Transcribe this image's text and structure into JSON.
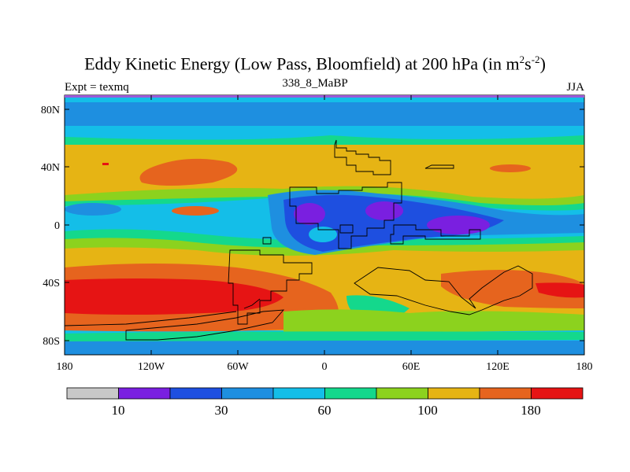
{
  "title": {
    "main": "Eddy Kinetic Energy (Low Pass, Bloomfield) at 200 hPa (in m",
    "sup1": "2",
    "mid": "s",
    "sup2": "-2",
    "end": ")"
  },
  "subtitle": {
    "left": "Expt = texmq",
    "center": "338_8_MaBP",
    "right": "JJA"
  },
  "axes": {
    "y_ticks": [
      "80N",
      "40N",
      "0",
      "40S",
      "80S"
    ],
    "x_ticks": [
      "180",
      "120W",
      "60W",
      "0",
      "60E",
      "120E",
      "180"
    ]
  },
  "colorbar": {
    "colors": [
      "#c8c8c8",
      "#7a1fe0",
      "#1e4fe0",
      "#1e8fe0",
      "#14bee8",
      "#14d88c",
      "#8cd21e",
      "#e6b414",
      "#e6641e",
      "#e61414"
    ],
    "labels": [
      "10",
      "30",
      "60",
      "100",
      "180"
    ]
  },
  "map_regions": [
    {
      "name": "blue",
      "color": "#1e8fe0"
    },
    {
      "name": "cyan",
      "color": "#14bee8"
    },
    {
      "name": "green",
      "color": "#14d88c"
    },
    {
      "name": "lime",
      "color": "#8cd21e"
    },
    {
      "name": "yellow",
      "color": "#e6b414"
    },
    {
      "name": "orange",
      "color": "#e6641e"
    },
    {
      "name": "red",
      "color": "#e61414"
    },
    {
      "name": "darkblue",
      "color": "#1e4fe0"
    },
    {
      "name": "purple",
      "color": "#7a1fe0"
    }
  ]
}
